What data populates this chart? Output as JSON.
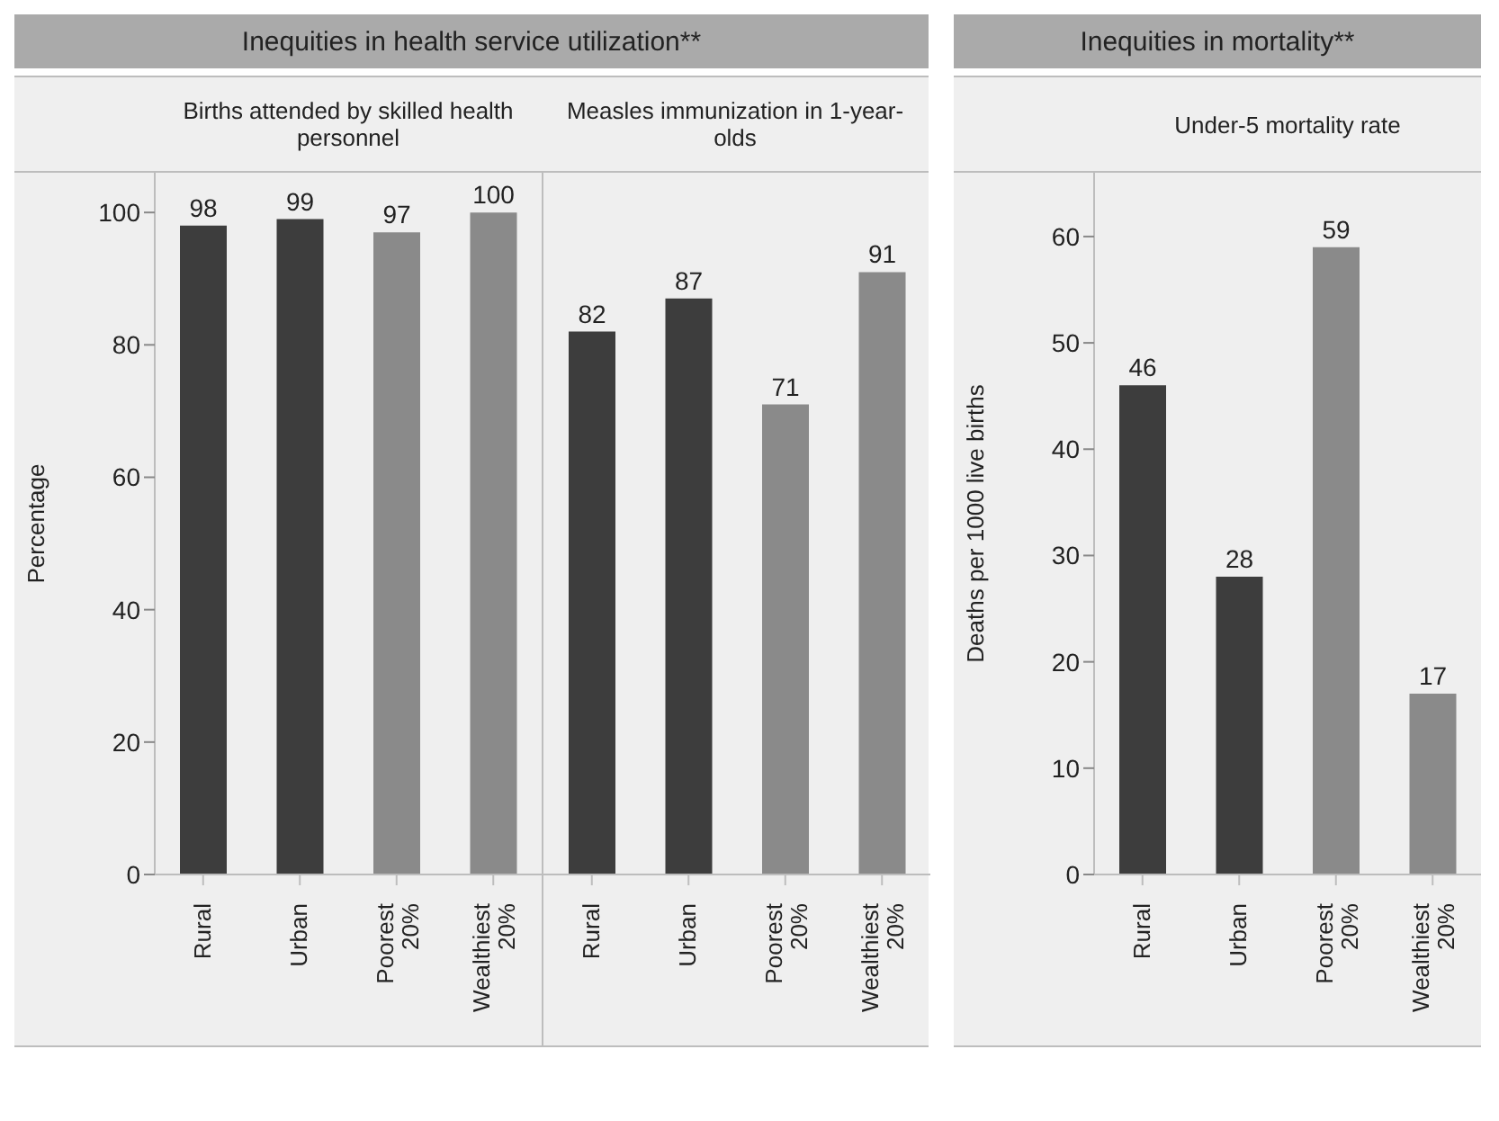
{
  "chart_data": [
    {
      "type": "bar",
      "title": "Inequities in health service utilization**",
      "subtitle": "Births attended by skilled health personnel",
      "ylabel": "Percentage",
      "categories": [
        "Rural",
        "Urban",
        "Poorest 20%",
        "Wealthiest 20%"
      ],
      "values": [
        98,
        99,
        97,
        100
      ],
      "colors": [
        "#3d3d3d",
        "#3d3d3d",
        "#8a8a8a",
        "#8a8a8a"
      ],
      "ylim": [
        0,
        106
      ],
      "yticks": [
        0,
        20,
        40,
        60,
        80,
        100
      ],
      "data_labels": true,
      "grid": false
    },
    {
      "type": "bar",
      "subtitle": "Measles immunization in 1-year-olds",
      "categories": [
        "Rural",
        "Urban",
        "Poorest 20%",
        "Wealthiest 20%"
      ],
      "values": [
        82,
        87,
        71,
        91
      ],
      "colors": [
        "#3d3d3d",
        "#3d3d3d",
        "#8a8a8a",
        "#8a8a8a"
      ],
      "ylim": [
        0,
        106
      ],
      "yticks": [
        0,
        20,
        40,
        60,
        80,
        100
      ],
      "data_labels": true,
      "grid": false,
      "tick_labels": "x"
    },
    {
      "type": "bar",
      "title": "Inequities in mortality**",
      "subtitle": "Under-5 mortality rate",
      "ylabel": "Deaths per 1000 live births",
      "categories": [
        "Rural",
        "Urban",
        "Poorest 20%",
        "Wealthiest 20%"
      ],
      "values": [
        46,
        28,
        59,
        17
      ],
      "colors": [
        "#3d3d3d",
        "#3d3d3d",
        "#8a8a8a",
        "#8a8a8a"
      ],
      "ylim": [
        0,
        66
      ],
      "yticks": [
        0,
        10,
        20,
        30,
        40,
        50,
        60
      ],
      "data_labels": true,
      "grid": false
    }
  ]
}
